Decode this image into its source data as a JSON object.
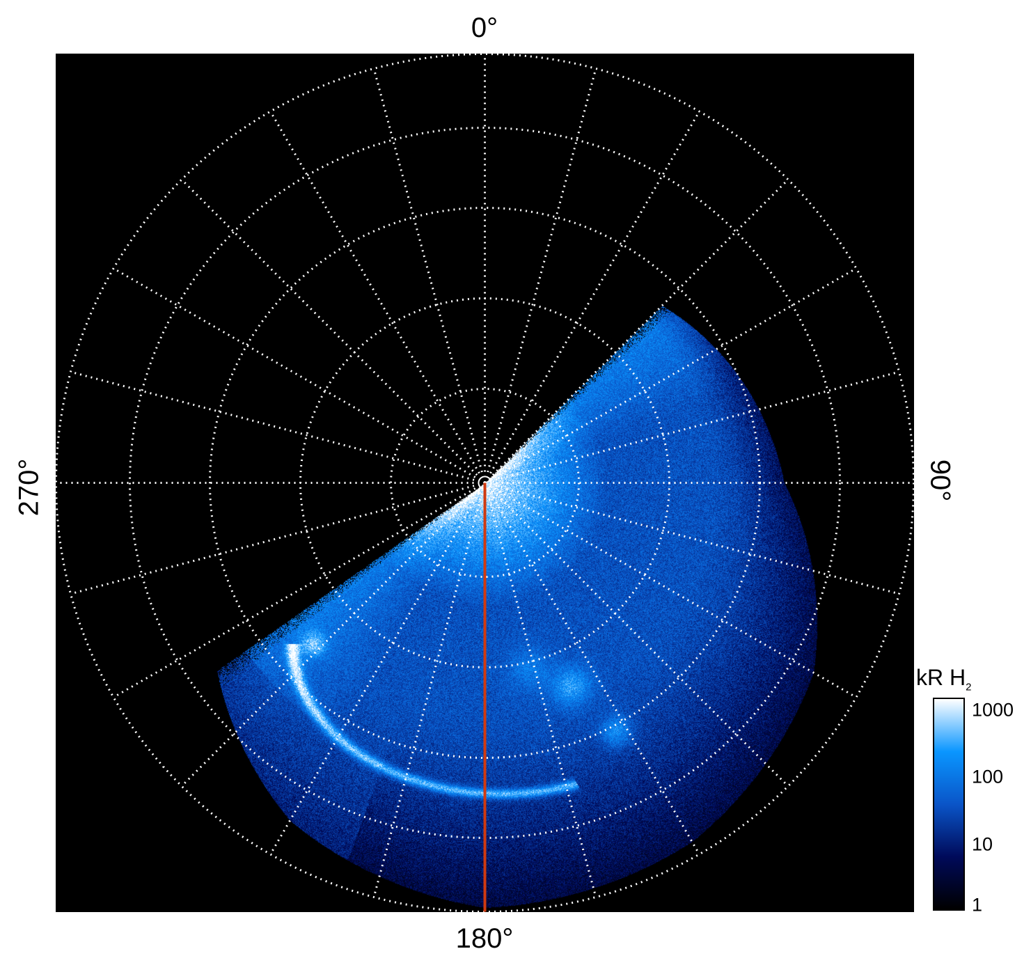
{
  "chart_data": {
    "type": "heatmap",
    "projection": "polar",
    "angular_labels": {
      "top": "0°",
      "right": "90°",
      "bottom": "180°",
      "left": "270°"
    },
    "grid": true,
    "grid_style": "dotted white",
    "spoke_spacing_deg": 15,
    "ring_count": 5,
    "colorbar": {
      "label": "kR H",
      "label_subscript": "2",
      "scale": "log",
      "ticks": [
        "1",
        "10",
        "100",
        "1000"
      ],
      "range": [
        1,
        1500
      ],
      "colors": [
        "#000000",
        "#000a5a",
        "#0a55c8",
        "#0a96ff",
        "#ffffff"
      ]
    },
    "marker_line": {
      "angle_deg": 180,
      "color": "#d03a10"
    }
  }
}
